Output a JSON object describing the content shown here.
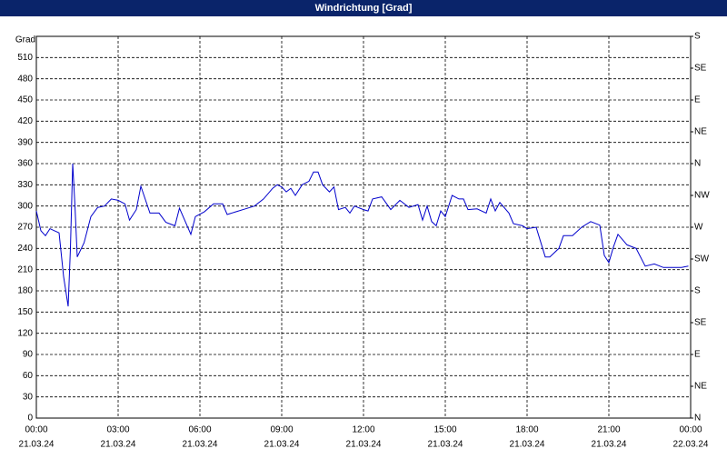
{
  "chart_data": {
    "type": "line",
    "title": "Windrichtung [Grad]",
    "ylabel": "Grad",
    "x": [
      "2024-03-21T00:00",
      "2024-03-21T00:10",
      "2024-03-21T00:20",
      "2024-03-21T00:30",
      "2024-03-21T00:40",
      "2024-03-21T00:50",
      "2024-03-21T01:00",
      "2024-03-21T01:10",
      "2024-03-21T01:15",
      "2024-03-21T01:20",
      "2024-03-21T01:25",
      "2024-03-21T01:30",
      "2024-03-21T01:45",
      "2024-03-21T02:00",
      "2024-03-21T02:15",
      "2024-03-21T02:30",
      "2024-03-21T02:45",
      "2024-03-21T03:00",
      "2024-03-21T03:15",
      "2024-03-21T03:25",
      "2024-03-21T03:40",
      "2024-03-21T03:50",
      "2024-03-21T04:10",
      "2024-03-21T04:30",
      "2024-03-21T04:45",
      "2024-03-21T05:05",
      "2024-03-21T05:15",
      "2024-03-21T05:40",
      "2024-03-21T05:50",
      "2024-03-21T06:10",
      "2024-03-21T06:30",
      "2024-03-21T06:50",
      "2024-03-21T07:00",
      "2024-03-21T07:20",
      "2024-03-21T07:40",
      "2024-03-21T08:00",
      "2024-03-21T08:20",
      "2024-03-21T08:40",
      "2024-03-21T08:50",
      "2024-03-21T09:00",
      "2024-03-21T09:10",
      "2024-03-21T09:20",
      "2024-03-21T09:30",
      "2024-03-21T09:45",
      "2024-03-21T10:00",
      "2024-03-21T10:10",
      "2024-03-21T10:20",
      "2024-03-21T10:30",
      "2024-03-21T10:45",
      "2024-03-21T10:55",
      "2024-03-21T11:05",
      "2024-03-21T11:20",
      "2024-03-21T11:30",
      "2024-03-21T11:40",
      "2024-03-21T12:00",
      "2024-03-21T12:10",
      "2024-03-21T12:20",
      "2024-03-21T12:40",
      "2024-03-21T13:00",
      "2024-03-21T13:20",
      "2024-03-21T13:40",
      "2024-03-21T14:00",
      "2024-03-21T14:10",
      "2024-03-21T14:20",
      "2024-03-21T14:30",
      "2024-03-21T14:40",
      "2024-03-21T14:50",
      "2024-03-21T15:00",
      "2024-03-21T15:15",
      "2024-03-21T15:30",
      "2024-03-21T15:40",
      "2024-03-21T15:50",
      "2024-03-21T16:10",
      "2024-03-21T16:30",
      "2024-03-21T16:40",
      "2024-03-21T16:50",
      "2024-03-21T17:00",
      "2024-03-21T17:20",
      "2024-03-21T17:30",
      "2024-03-21T17:50",
      "2024-03-21T18:00",
      "2024-03-21T18:20",
      "2024-03-21T18:40",
      "2024-03-21T18:50",
      "2024-03-21T19:10",
      "2024-03-21T19:20",
      "2024-03-21T19:40",
      "2024-03-21T20:00",
      "2024-03-21T20:20",
      "2024-03-21T20:40",
      "2024-03-21T20:50",
      "2024-03-21T21:00",
      "2024-03-21T21:10",
      "2024-03-21T21:20",
      "2024-03-21T21:40",
      "2024-03-21T22:00",
      "2024-03-21T22:20",
      "2024-03-21T22:40",
      "2024-03-21T23:00",
      "2024-03-21T23:20",
      "2024-03-21T23:40",
      "2024-03-21T23:55"
    ],
    "values": [
      293,
      265,
      258,
      268,
      265,
      262,
      200,
      158,
      240,
      360,
      300,
      228,
      248,
      285,
      298,
      300,
      310,
      308,
      303,
      280,
      295,
      328,
      290,
      290,
      277,
      272,
      297,
      260,
      285,
      292,
      303,
      303,
      288,
      292,
      296,
      300,
      310,
      325,
      330,
      327,
      320,
      325,
      315,
      330,
      335,
      348,
      348,
      330,
      320,
      327,
      295,
      298,
      290,
      300,
      295,
      293,
      310,
      313,
      295,
      308,
      298,
      302,
      280,
      300,
      278,
      272,
      293,
      285,
      315,
      310,
      310,
      295,
      296,
      290,
      310,
      293,
      305,
      290,
      275,
      272,
      268,
      270,
      228,
      228,
      240,
      258,
      258,
      270,
      278,
      273,
      230,
      220,
      242,
      260,
      245,
      240,
      215,
      218,
      213,
      213,
      213,
      215
    ],
    "color": "#0000cc",
    "xlim": [
      "2024-03-21T00:00",
      "2024-03-22T00:00"
    ],
    "xticks": [
      {
        "value": "2024-03-21T00:00",
        "label": "00:00"
      },
      {
        "value": "2024-03-21T03:00",
        "label": "03:00"
      },
      {
        "value": "2024-03-21T06:00",
        "label": "06:00"
      },
      {
        "value": "2024-03-21T09:00",
        "label": "09:00"
      },
      {
        "value": "2024-03-21T12:00",
        "label": "12:00"
      },
      {
        "value": "2024-03-21T15:00",
        "label": "15:00"
      },
      {
        "value": "2024-03-21T18:00",
        "label": "18:00"
      },
      {
        "value": "2024-03-21T21:00",
        "label": "21:00"
      },
      {
        "value": "2024-03-22T00:00",
        "label": "00:00"
      }
    ],
    "xtick_dates": [
      "21.03.24",
      "21.03.24",
      "21.03.24",
      "21.03.24",
      "21.03.24",
      "21.03.24",
      "21.03.24",
      "21.03.24",
      "22.03.24"
    ],
    "ylim": [
      0,
      540
    ],
    "yticks": [
      0,
      30,
      60,
      90,
      120,
      150,
      180,
      210,
      240,
      270,
      300,
      330,
      360,
      390,
      420,
      450,
      480,
      510
    ],
    "y2lim": [
      0,
      540
    ],
    "y2ticks": [
      {
        "value": 0,
        "label": "N"
      },
      {
        "value": 45,
        "label": "NE"
      },
      {
        "value": 90,
        "label": "E"
      },
      {
        "value": 135,
        "label": "SE"
      },
      {
        "value": 180,
        "label": "S"
      },
      {
        "value": 225,
        "label": "SW"
      },
      {
        "value": 270,
        "label": "W"
      },
      {
        "value": 315,
        "label": "NW"
      },
      {
        "value": 360,
        "label": "N"
      },
      {
        "value": 405,
        "label": "NE"
      },
      {
        "value": 450,
        "label": "E"
      },
      {
        "value": 495,
        "label": "SE"
      },
      {
        "value": 540,
        "label": "S"
      }
    ],
    "grid": true
  }
}
